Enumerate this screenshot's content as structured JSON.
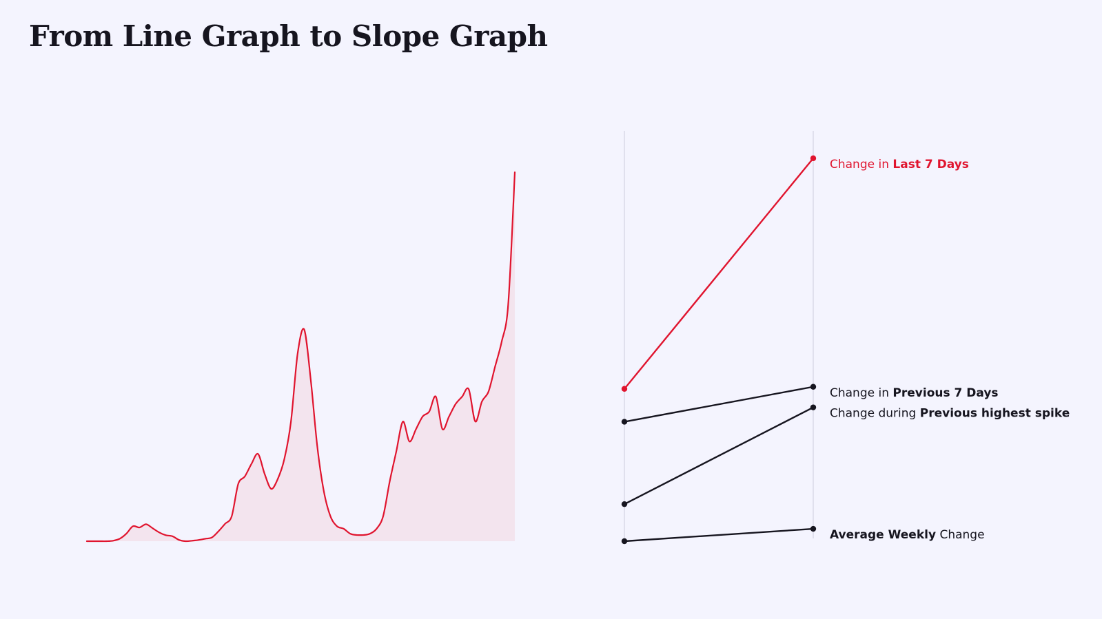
{
  "page": {
    "title": "From Line Graph to Slope Graph"
  },
  "colors": {
    "background": "#f4f4fe",
    "accent": "#e0142e",
    "area_fill": "#f3e4ee",
    "ink": "#16151f",
    "axis": "#d3d3e2"
  },
  "chart_data": [
    {
      "type": "area",
      "title": "",
      "xlabel": "",
      "ylabel": "",
      "grid": false,
      "series": [
        {
          "values": [
            0,
            0,
            0,
            0,
            0.2,
            1,
            3,
            6,
            5.5,
            6.8,
            5.2,
            3.5,
            2.4,
            2,
            0.5,
            0,
            0.2,
            0.5,
            1,
            1.5,
            4,
            7,
            10,
            23,
            26,
            31,
            35,
            27,
            21,
            25,
            33,
            48,
            75,
            85,
            65,
            38,
            20,
            10,
            6,
            5,
            3,
            2.5,
            2.5,
            3,
            5,
            10,
            24,
            36,
            48,
            40,
            45,
            50,
            52,
            58,
            45,
            50,
            55,
            58,
            61,
            48,
            56,
            60,
            70,
            80,
            95,
            148
          ]
        }
      ],
      "ylim": [
        0,
        150
      ]
    },
    {
      "type": "line",
      "title": "",
      "xlabel": "",
      "ylabel": "",
      "grid": false,
      "ylim": [
        0,
        100
      ],
      "series": [
        {
          "label_parts": [
            {
              "text": "Change in ",
              "bold": false
            },
            {
              "text": "Last 7 Days",
              "bold": true
            }
          ],
          "start": 37,
          "end": 93,
          "highlight": true
        },
        {
          "label_parts": [
            {
              "text": "Change in ",
              "bold": false
            },
            {
              "text": "Previous 7 Days",
              "bold": true
            }
          ],
          "start": 29,
          "end": 37.5,
          "highlight": false
        },
        {
          "label_parts": [
            {
              "text": "Change during ",
              "bold": false
            },
            {
              "text": "Previous highest spike",
              "bold": true
            }
          ],
          "start": 9,
          "end": 32.5,
          "highlight": false
        },
        {
          "label_parts": [
            {
              "text": "Average Weekly",
              "bold": true
            },
            {
              "text": " Change",
              "bold": false
            }
          ],
          "start": 0,
          "end": 3,
          "highlight": false
        }
      ]
    }
  ]
}
